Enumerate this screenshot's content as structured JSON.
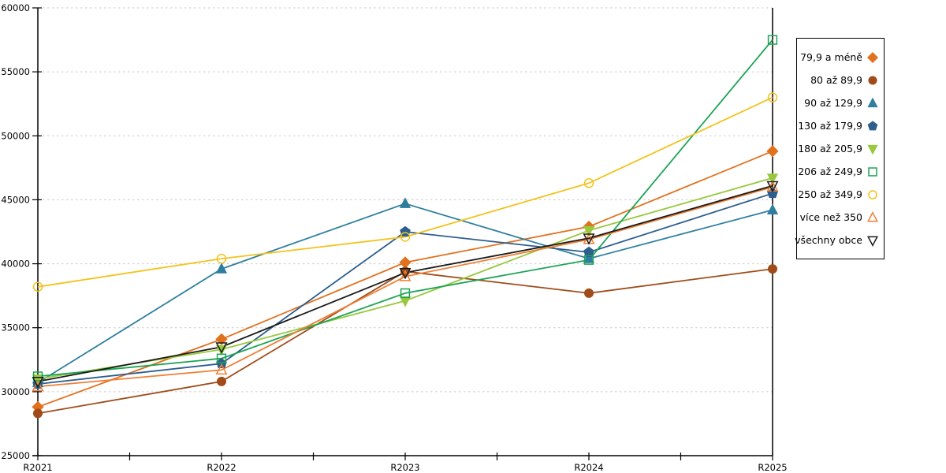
{
  "chart_data": {
    "type": "line",
    "title": "",
    "xlabel": "",
    "ylabel": "",
    "x_categories": [
      "R2021",
      "R2022",
      "R2023",
      "R2024",
      "R2025"
    ],
    "ylim": [
      25000,
      60000
    ],
    "yticks": [
      25000,
      30000,
      35000,
      40000,
      45000,
      50000,
      55000,
      60000
    ],
    "grid": "horizontal-dashed",
    "grid_color": "#c9c9c9",
    "axis_color": "#000000",
    "legend_position": "right-box",
    "series": [
      {
        "name": "79,9 a méně",
        "marker": "diamond",
        "filled": true,
        "color": "#e2711d",
        "values": [
          28800,
          34100,
          40100,
          42900,
          48800
        ]
      },
      {
        "name": "80 až 89,9",
        "marker": "circle",
        "filled": true,
        "color": "#9f4c1a",
        "values": [
          28300,
          30800,
          39400,
          37700,
          39600
        ]
      },
      {
        "name": "90 až 129,9",
        "marker": "triangle-up",
        "filled": true,
        "color": "#2e7f9f",
        "values": [
          30700,
          39600,
          44700,
          40400,
          44200
        ]
      },
      {
        "name": "130 až 179,9",
        "marker": "pentagon",
        "filled": true,
        "color": "#2d5e8e",
        "values": [
          30600,
          32200,
          42500,
          40900,
          45500
        ]
      },
      {
        "name": "180 až 205,9",
        "marker": "triangle-down",
        "filled": true,
        "color": "#98c83d",
        "values": [
          31000,
          33300,
          37100,
          42600,
          46700
        ]
      },
      {
        "name": "206 až 249,9",
        "marker": "square",
        "filled": false,
        "color": "#1ba353",
        "values": [
          31200,
          32600,
          37700,
          40300,
          57500
        ]
      },
      {
        "name": "250 až 349,9",
        "marker": "circle",
        "filled": false,
        "color": "#f2c31d",
        "values": [
          38200,
          40400,
          42100,
          46300,
          53000
        ]
      },
      {
        "name": "více než 350",
        "marker": "triangle-up",
        "filled": false,
        "color": "#ee7f35",
        "values": [
          30400,
          31700,
          39000,
          41900,
          46000
        ]
      },
      {
        "name": "všechny obce",
        "marker": "triangle-down",
        "filled": false,
        "color": "#1a1a1a",
        "values": [
          30800,
          33500,
          39300,
          42000,
          46100
        ]
      }
    ]
  }
}
